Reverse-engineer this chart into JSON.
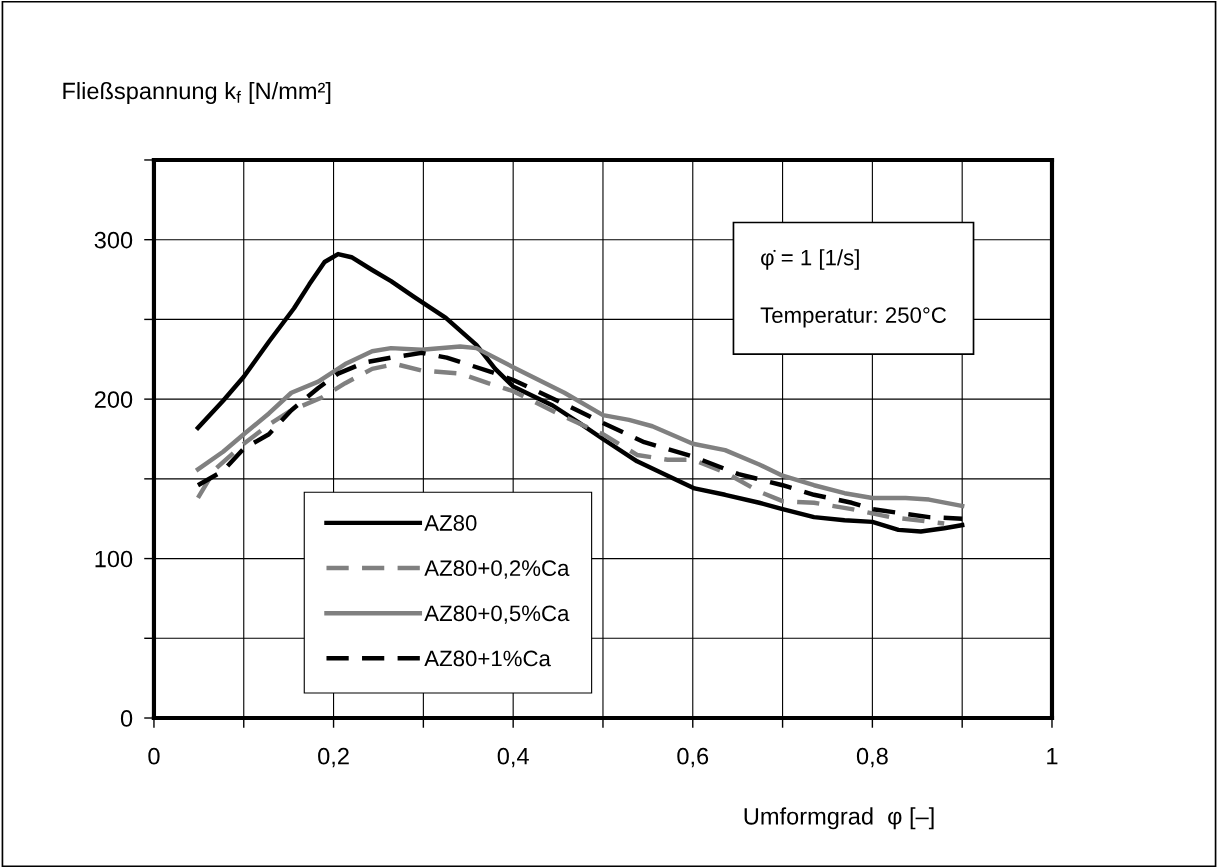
{
  "chart_data": {
    "type": "line",
    "ylabel": "Fließspannung k$_{f}$ [N/mm²]",
    "xlabel": "Umformgrad  φ [–]",
    "annotations": [
      "φ̇ = 1 [1/s]\n\nTemperatur: 250°C"
    ],
    "xlim": [
      0,
      1
    ],
    "ylim": [
      0,
      350
    ],
    "xticks": [
      0,
      {
        "value": 0.1,
        "label": null
      },
      {
        "value": 0.2,
        "label": "0,2"
      },
      {
        "value": 0.3,
        "label": null
      },
      {
        "value": 0.4,
        "label": "0,4"
      },
      {
        "value": 0.5,
        "label": null
      },
      {
        "value": 0.6,
        "label": "0,6"
      },
      {
        "value": 0.7,
        "label": null
      },
      {
        "value": 0.8,
        "label": "0,8"
      },
      {
        "value": 0.9,
        "label": null
      },
      1
    ],
    "yticks": [
      0,
      {
        "value": 50,
        "label": null
      },
      100,
      {
        "value": 150,
        "label": null
      },
      200,
      {
        "value": 250,
        "label": null
      },
      300,
      {
        "value": 350,
        "label": null
      }
    ],
    "grid": true,
    "legend": "bottom left",
    "marker": "none",
    "series": [
      {
        "name": "AZ80",
        "color": "#000000",
        "line_style": "solid",
        "x": [
          0.049,
          0.077,
          0.1,
          0.128,
          0.156,
          0.173,
          0.19,
          0.205,
          0.22,
          0.243,
          0.264,
          0.29,
          0.325,
          0.359,
          0.38,
          0.4,
          0.444,
          0.474,
          0.5,
          0.538,
          0.572,
          0.602,
          0.636,
          0.674,
          0.7,
          0.735,
          0.769,
          0.8,
          0.829,
          0.854,
          0.88,
          0.9
        ],
        "values": [
          182,
          199,
          214,
          236,
          257,
          272,
          286,
          291,
          289,
          281,
          274,
          264,
          251,
          234,
          219,
          208,
          196,
          185,
          175,
          161,
          152,
          144,
          140,
          135,
          131,
          126,
          124,
          123,
          118,
          117,
          119,
          121
        ]
      },
      {
        "name": "AZ80+0,2%Ca",
        "color": "#808080",
        "line_style": "dashed",
        "x": [
          0.049,
          0.068,
          0.1,
          0.128,
          0.153,
          0.187,
          0.213,
          0.243,
          0.269,
          0.298,
          0.341,
          0.372,
          0.4,
          0.457,
          0.5,
          0.538,
          0.572,
          0.6,
          0.636,
          0.674,
          0.7,
          0.735,
          0.777,
          0.82,
          0.88
        ],
        "values": [
          138,
          156,
          172,
          184,
          193,
          201,
          210,
          219,
          222,
          218,
          216,
          210,
          205,
          189,
          178,
          165,
          162,
          162,
          154,
          142,
          136,
          135,
          131,
          126,
          122
        ]
      },
      {
        "name": "AZ80+0,5%Ca",
        "color": "#808080",
        "line_style": "solid",
        "x": [
          0.049,
          0.077,
          0.1,
          0.128,
          0.153,
          0.183,
          0.213,
          0.243,
          0.264,
          0.298,
          0.341,
          0.359,
          0.4,
          0.457,
          0.5,
          0.529,
          0.555,
          0.6,
          0.636,
          0.674,
          0.7,
          0.735,
          0.769,
          0.8,
          0.837,
          0.863,
          0.9
        ],
        "values": [
          156,
          167,
          178,
          191,
          204,
          211,
          222,
          230,
          232,
          231,
          233,
          232,
          220,
          204,
          190,
          187,
          183,
          172,
          168,
          159,
          152,
          146,
          141,
          138,
          138,
          137,
          133
        ]
      },
      {
        "name": "AZ80+1%Ca",
        "color": "#000000",
        "line_style": "dashed",
        "x": [
          0.049,
          0.077,
          0.1,
          0.128,
          0.153,
          0.183,
          0.205,
          0.235,
          0.264,
          0.298,
          0.326,
          0.376,
          0.4,
          0.457,
          0.5,
          0.546,
          0.6,
          0.651,
          0.7,
          0.735,
          0.777,
          0.8,
          0.863,
          0.9
        ],
        "values": [
          146,
          155,
          169,
          178,
          193,
          207,
          216,
          223,
          226,
          229,
          226,
          217,
          212,
          197,
          185,
          173,
          164,
          153,
          146,
          140,
          135,
          131,
          126,
          125
        ]
      }
    ]
  }
}
